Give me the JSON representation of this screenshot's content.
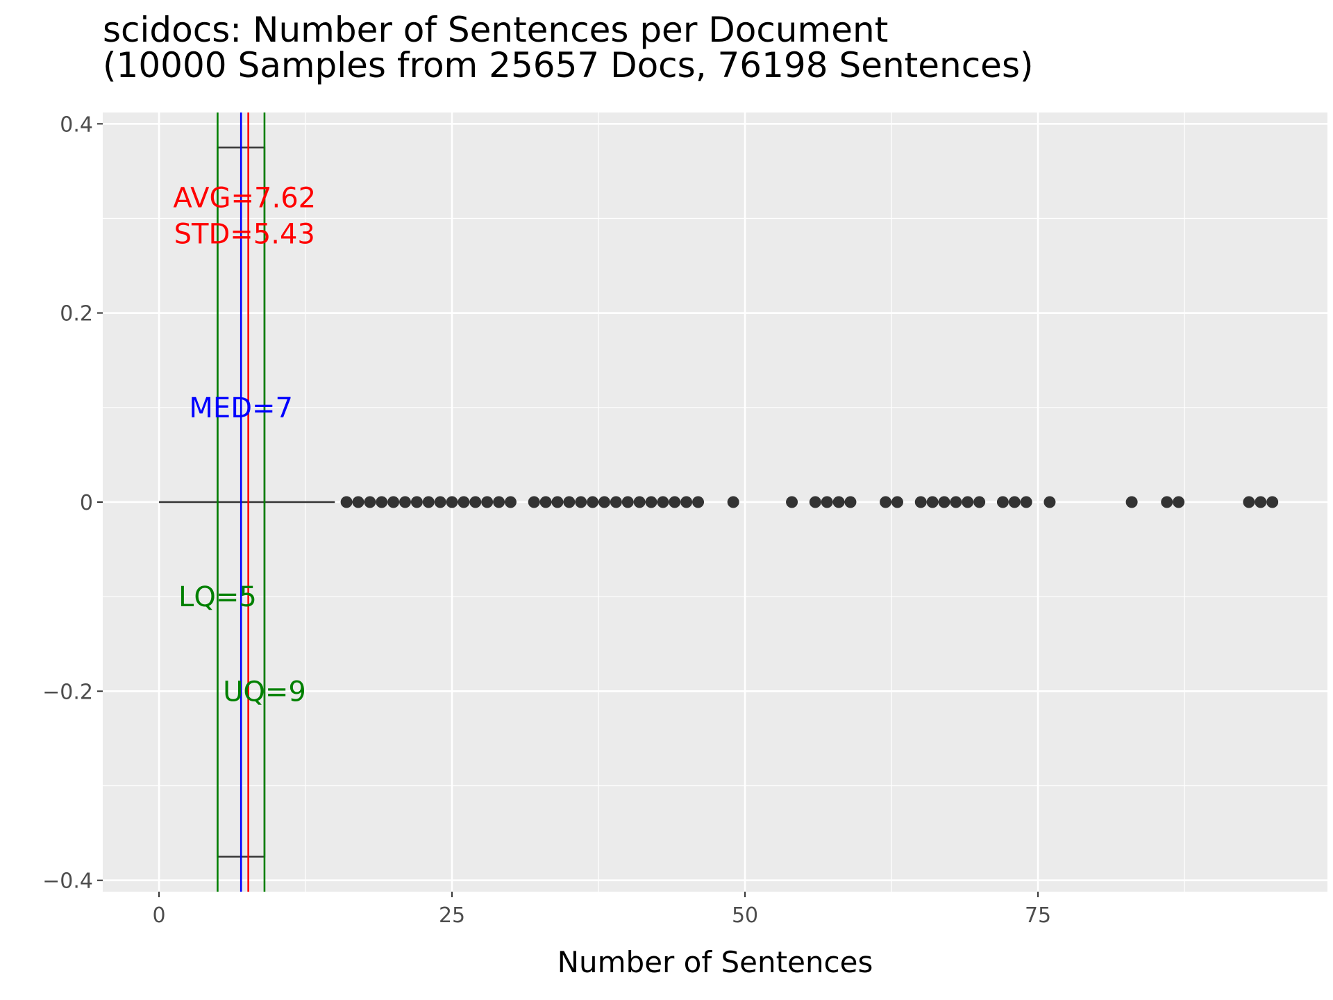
{
  "chart_data": {
    "type": "scatter",
    "title": "scidocs: Number of Sentences per Document",
    "subtitle": "(10000 Samples from 25657 Docs, 76198 Sentences)",
    "xlabel": "Number of Sentences",
    "ylabel": "",
    "xlim": [
      -4.8,
      99.7
    ],
    "ylim": [
      -0.412,
      0.412
    ],
    "x_ticks": [
      0,
      25,
      50,
      75
    ],
    "x_tick_labels": [
      "0",
      "25",
      "50",
      "75"
    ],
    "y_ticks": [
      0.4,
      0.2,
      0,
      -0.2,
      -0.4
    ],
    "y_tick_labels": [
      "0.4",
      "0.2",
      "0",
      "−0.2",
      "−0.4"
    ],
    "grid": true,
    "boxplot": {
      "whisker_low": 0,
      "q1": 5,
      "median": 7,
      "q3": 9,
      "whisker_high": 15,
      "box_half_height": 0.375
    },
    "outliers": [
      16,
      17,
      18,
      19,
      20,
      21,
      22,
      23,
      24,
      25,
      26,
      27,
      28,
      29,
      30,
      32,
      33,
      34,
      35,
      36,
      37,
      38,
      39,
      40,
      41,
      42,
      43,
      44,
      45,
      46,
      49,
      54,
      56,
      57,
      58,
      59,
      62,
      63,
      65,
      66,
      67,
      68,
      69,
      70,
      72,
      73,
      74,
      76,
      83,
      86,
      87,
      93,
      94,
      95
    ],
    "reference_lines": [
      {
        "x": 5,
        "color": "#008000"
      },
      {
        "x": 9,
        "color": "#008000"
      },
      {
        "x": 7,
        "color": "#0000ff"
      },
      {
        "x": 7.62,
        "color": "#ff0000"
      }
    ],
    "annotations": [
      {
        "text": "AVG=7.62",
        "x": 7.3,
        "y": 0.322,
        "color": "#ff0000"
      },
      {
        "text": "STD=5.43",
        "x": 7.3,
        "y": 0.284,
        "color": "#ff0000"
      },
      {
        "text": "MED=7",
        "x": 7,
        "y": 0.1,
        "color": "#0000ff"
      },
      {
        "text": "LQ=5",
        "x": 5,
        "y": -0.1,
        "color": "#008000"
      },
      {
        "text": "UQ=9",
        "x": 9,
        "y": -0.2,
        "color": "#008000"
      }
    ]
  }
}
